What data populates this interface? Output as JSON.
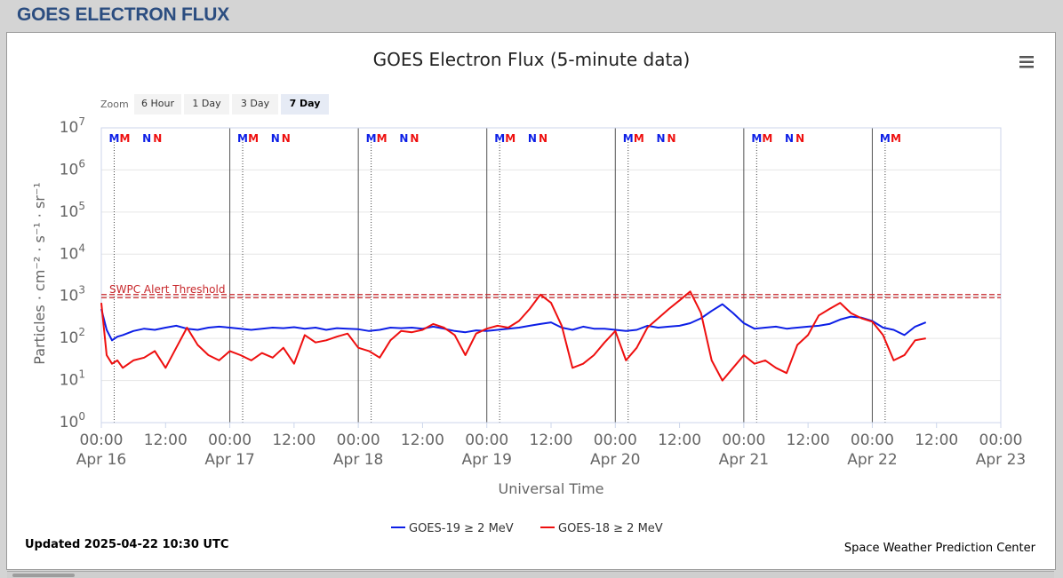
{
  "page": {
    "title": "GOES ELECTRON FLUX"
  },
  "colors": {
    "goes19": "#0d1fe6",
    "goes18": "#ee0f0f",
    "threshold": "#c8282c",
    "title_color": "#2b4d80"
  },
  "chart": {
    "menu_icon": "hamburger-menu-icon",
    "zoom": {
      "label": "Zoom",
      "buttons": [
        "6 Hour",
        "1 Day",
        "3 Day",
        "7 Day"
      ],
      "selected": "7 Day"
    },
    "updated": "Updated 2025-04-22 10:30 UTC",
    "credit": "Space Weather Prediction Center",
    "marker_colors": {
      "M": "#0d1fe6",
      "N": "#0d1fe6"
    }
  },
  "chart_data": {
    "type": "line",
    "title": "GOES Electron Flux (5-minute data)",
    "xlabel": "Universal Time",
    "ylabel": "Particles · cm⁻² · s⁻¹ · sr⁻¹",
    "y_scale": "log",
    "ylim": [
      1,
      10000000
    ],
    "xlim_hours": [
      0,
      168
    ],
    "x_ticks": [
      {
        "time": "00:00",
        "date": "Apr 16"
      },
      {
        "time": "12:00",
        "date": ""
      },
      {
        "time": "00:00",
        "date": "Apr 17"
      },
      {
        "time": "12:00",
        "date": ""
      },
      {
        "time": "00:00",
        "date": "Apr 18"
      },
      {
        "time": "12:00",
        "date": ""
      },
      {
        "time": "00:00",
        "date": "Apr 19"
      },
      {
        "time": "12:00",
        "date": ""
      },
      {
        "time": "00:00",
        "date": "Apr 20"
      },
      {
        "time": "12:00",
        "date": ""
      },
      {
        "time": "00:00",
        "date": "Apr 21"
      },
      {
        "time": "12:00",
        "date": ""
      },
      {
        "time": "00:00",
        "date": "Apr 22"
      },
      {
        "time": "12:00",
        "date": ""
      },
      {
        "time": "00:00",
        "date": "Apr 23"
      }
    ],
    "y_ticks": [
      {
        "base": "10",
        "exp": "0",
        "value": 1
      },
      {
        "base": "10",
        "exp": "1",
        "value": 10
      },
      {
        "base": "10",
        "exp": "2",
        "value": 100
      },
      {
        "base": "10",
        "exp": "3",
        "value": 1000
      },
      {
        "base": "10",
        "exp": "4",
        "value": 10000
      },
      {
        "base": "10",
        "exp": "5",
        "value": 100000
      },
      {
        "base": "10",
        "exp": "6",
        "value": 1000000
      },
      {
        "base": "10",
        "exp": "7",
        "value": 10000000
      }
    ],
    "threshold": {
      "label": "SWPC Alert Threshold",
      "value": 1000
    },
    "orbit_markers": [
      {
        "letter": "M",
        "hours": [
          2.4,
          26.4,
          50.4,
          74.4,
          98.4,
          122.4,
          146.4
        ],
        "color": "#0d1fe6"
      },
      {
        "letter": "M",
        "hours": [
          4.4,
          28.4,
          52.4,
          76.4,
          100.4,
          124.4,
          148.4
        ],
        "color": "#ee0f0f"
      },
      {
        "letter": "N",
        "hours": [
          8.5,
          32.5,
          56.5,
          80.5,
          104.5,
          128.5
        ],
        "color": "#0d1fe6"
      },
      {
        "letter": "N",
        "hours": [
          10.5,
          34.5,
          58.5,
          82.5,
          106.5,
          130.5
        ],
        "color": "#ee0f0f"
      }
    ],
    "series": [
      {
        "name": "GOES-19 ≥ 2 MeV",
        "color": "#0d1fe6",
        "x": [
          0,
          1,
          2,
          3,
          4,
          6,
          8,
          10,
          12,
          14,
          16,
          18,
          20,
          22,
          24,
          26,
          28,
          30,
          32,
          34,
          36,
          38,
          40,
          42,
          44,
          46,
          48,
          50,
          52,
          54,
          56,
          58,
          60,
          62,
          64,
          66,
          68,
          70,
          72,
          74,
          76,
          78,
          80,
          82,
          84,
          86,
          88,
          90,
          92,
          94,
          96,
          98,
          100,
          102,
          104,
          106,
          108,
          110,
          112,
          114,
          116,
          118,
          120,
          122,
          124,
          126,
          128,
          130,
          132,
          134,
          136,
          138,
          140,
          142,
          144,
          146,
          148,
          150,
          152,
          154
        ],
        "y": [
          500,
          160,
          90,
          110,
          120,
          150,
          170,
          160,
          180,
          200,
          170,
          160,
          180,
          190,
          180,
          170,
          160,
          170,
          180,
          175,
          185,
          170,
          180,
          160,
          175,
          170,
          165,
          150,
          160,
          180,
          175,
          180,
          170,
          190,
          170,
          150,
          140,
          155,
          150,
          160,
          170,
          180,
          200,
          220,
          240,
          180,
          160,
          190,
          170,
          170,
          160,
          150,
          160,
          200,
          180,
          190,
          200,
          230,
          300,
          450,
          650,
          400,
          230,
          170,
          180,
          190,
          170,
          180,
          190,
          200,
          220,
          280,
          330,
          310,
          260,
          180,
          160,
          120,
          190,
          240
        ]
      },
      {
        "name": "GOES-18 ≥ 2 MeV",
        "color": "#ee0f0f",
        "x": [
          0,
          1,
          2,
          3,
          4,
          6,
          8,
          10,
          12,
          14,
          16,
          18,
          20,
          22,
          24,
          26,
          28,
          30,
          32,
          34,
          36,
          38,
          40,
          42,
          44,
          46,
          48,
          50,
          52,
          54,
          56,
          58,
          60,
          62,
          64,
          66,
          68,
          70,
          72,
          74,
          76,
          78,
          80,
          82,
          84,
          86,
          88,
          90,
          92,
          94,
          96,
          98,
          100,
          102,
          104,
          106,
          108,
          110,
          112,
          114,
          116,
          118,
          120,
          122,
          124,
          126,
          128,
          130,
          132,
          134,
          136,
          138,
          140,
          142,
          144,
          146,
          148,
          150,
          152,
          154
        ],
        "y": [
          700,
          40,
          25,
          30,
          20,
          30,
          35,
          50,
          20,
          60,
          180,
          70,
          40,
          30,
          50,
          40,
          30,
          45,
          35,
          60,
          25,
          120,
          80,
          90,
          110,
          130,
          60,
          50,
          35,
          90,
          150,
          140,
          160,
          220,
          180,
          120,
          40,
          130,
          170,
          200,
          180,
          260,
          500,
          1100,
          700,
          200,
          20,
          25,
          40,
          80,
          150,
          30,
          60,
          180,
          300,
          500,
          800,
          1300,
          400,
          30,
          10,
          20,
          40,
          25,
          30,
          20,
          15,
          70,
          120,
          350,
          500,
          700,
          400,
          300,
          250,
          120,
          30,
          40,
          90,
          100
        ]
      }
    ],
    "legend": "bottom-center"
  }
}
